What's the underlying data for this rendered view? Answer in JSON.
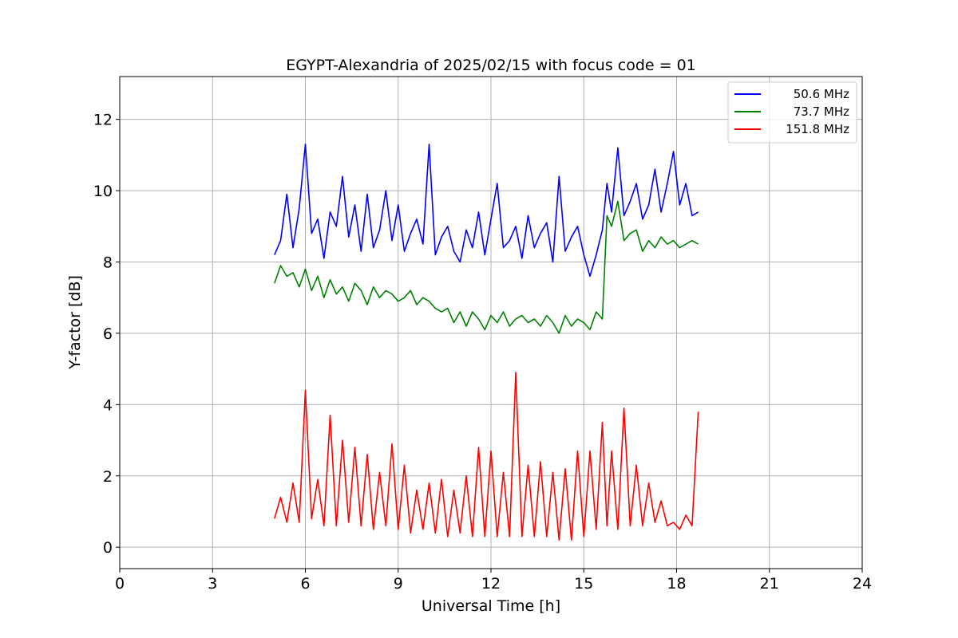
{
  "chart_data": {
    "type": "line",
    "title": "EGYPT-Alexandria of 2025/02/15 with focus code = 01",
    "xlabel": "Universal Time [h]",
    "ylabel": "Y-factor [dB]",
    "xlim": [
      0,
      24
    ],
    "ylim": [
      -0.6,
      13.2
    ],
    "xticks": [
      0,
      3,
      6,
      9,
      12,
      15,
      18,
      21,
      24
    ],
    "xtick_labels": [
      "0",
      "3",
      "6",
      "9",
      "12",
      "15",
      "18",
      "21",
      "24"
    ],
    "yticks": [
      0,
      2,
      4,
      6,
      8,
      10,
      12
    ],
    "ytick_labels": [
      "0",
      "2",
      "4",
      "6",
      "8",
      "10",
      "12"
    ],
    "grid": true,
    "legend_position": "top-right",
    "series": [
      {
        "name": "50.6 MHz",
        "color": "#0000ff",
        "x": [
          5.0,
          5.2,
          5.4,
          5.6,
          5.8,
          6.0,
          6.2,
          6.4,
          6.6,
          6.8,
          7.0,
          7.2,
          7.4,
          7.6,
          7.8,
          8.0,
          8.2,
          8.4,
          8.6,
          8.8,
          9.0,
          9.2,
          9.4,
          9.6,
          9.8,
          10.0,
          10.2,
          10.4,
          10.6,
          10.8,
          11.0,
          11.2,
          11.4,
          11.6,
          11.8,
          12.0,
          12.2,
          12.4,
          12.6,
          12.8,
          13.0,
          13.2,
          13.4,
          13.6,
          13.8,
          14.0,
          14.2,
          14.4,
          14.6,
          14.8,
          15.0,
          15.2,
          15.4,
          15.6,
          15.75,
          15.9,
          16.1,
          16.3,
          16.5,
          16.7,
          16.9,
          17.1,
          17.3,
          17.5,
          17.7,
          17.9,
          18.1,
          18.3,
          18.5,
          18.7
        ],
        "y": [
          8.2,
          8.6,
          9.9,
          8.4,
          9.5,
          11.3,
          8.8,
          9.2,
          8.1,
          9.4,
          9.0,
          10.4,
          8.7,
          9.6,
          8.3,
          9.9,
          8.4,
          8.9,
          10.0,
          8.6,
          9.6,
          8.3,
          8.8,
          9.2,
          8.5,
          11.3,
          8.2,
          8.7,
          9.0,
          8.3,
          8.0,
          8.9,
          8.4,
          9.4,
          8.2,
          9.2,
          10.2,
          8.4,
          8.6,
          9.0,
          8.1,
          9.3,
          8.4,
          8.8,
          9.1,
          8.0,
          10.4,
          8.3,
          8.7,
          9.0,
          8.2,
          7.6,
          8.2,
          8.9,
          10.2,
          9.4,
          11.2,
          9.3,
          9.7,
          10.2,
          9.2,
          9.6,
          10.6,
          9.4,
          10.2,
          11.1,
          9.6,
          10.2,
          9.3,
          9.4
        ]
      },
      {
        "name": "73.7 MHz",
        "color": "#008000",
        "x": [
          5.0,
          5.2,
          5.4,
          5.6,
          5.8,
          6.0,
          6.2,
          6.4,
          6.6,
          6.8,
          7.0,
          7.2,
          7.4,
          7.6,
          7.8,
          8.0,
          8.2,
          8.4,
          8.6,
          8.8,
          9.0,
          9.2,
          9.4,
          9.6,
          9.8,
          10.0,
          10.2,
          10.4,
          10.6,
          10.8,
          11.0,
          11.2,
          11.4,
          11.6,
          11.8,
          12.0,
          12.2,
          12.4,
          12.6,
          12.8,
          13.0,
          13.2,
          13.4,
          13.6,
          13.8,
          14.0,
          14.2,
          14.4,
          14.6,
          14.8,
          15.0,
          15.2,
          15.4,
          15.6,
          15.75,
          15.9,
          16.1,
          16.3,
          16.5,
          16.7,
          16.9,
          17.1,
          17.3,
          17.5,
          17.7,
          17.9,
          18.1,
          18.3,
          18.5,
          18.7
        ],
        "y": [
          7.4,
          7.9,
          7.6,
          7.7,
          7.3,
          7.8,
          7.2,
          7.6,
          7.0,
          7.5,
          7.1,
          7.3,
          6.9,
          7.4,
          7.2,
          6.8,
          7.3,
          7.0,
          7.2,
          7.1,
          6.9,
          7.0,
          7.2,
          6.8,
          7.0,
          6.9,
          6.7,
          6.6,
          6.7,
          6.3,
          6.6,
          6.2,
          6.6,
          6.4,
          6.1,
          6.5,
          6.3,
          6.6,
          6.2,
          6.4,
          6.5,
          6.3,
          6.4,
          6.2,
          6.5,
          6.3,
          6.0,
          6.5,
          6.2,
          6.4,
          6.3,
          6.1,
          6.6,
          6.4,
          9.3,
          9.0,
          9.7,
          8.6,
          8.8,
          8.9,
          8.3,
          8.6,
          8.4,
          8.7,
          8.5,
          8.6,
          8.4,
          8.5,
          8.6,
          8.5
        ]
      },
      {
        "name": "151.8 MHz",
        "color": "#ff0000",
        "x": [
          5.0,
          5.2,
          5.4,
          5.6,
          5.8,
          6.0,
          6.2,
          6.4,
          6.6,
          6.8,
          7.0,
          7.2,
          7.4,
          7.6,
          7.8,
          8.0,
          8.2,
          8.4,
          8.6,
          8.8,
          9.0,
          9.2,
          9.4,
          9.6,
          9.8,
          10.0,
          10.2,
          10.4,
          10.6,
          10.8,
          11.0,
          11.2,
          11.4,
          11.6,
          11.8,
          12.0,
          12.2,
          12.4,
          12.6,
          12.8,
          13.0,
          13.2,
          13.4,
          13.6,
          13.8,
          14.0,
          14.2,
          14.4,
          14.6,
          14.8,
          15.0,
          15.2,
          15.4,
          15.6,
          15.75,
          15.9,
          16.1,
          16.3,
          16.5,
          16.7,
          16.9,
          17.1,
          17.3,
          17.5,
          17.7,
          17.9,
          18.1,
          18.3,
          18.5,
          18.7
        ],
        "y": [
          0.8,
          1.4,
          0.7,
          1.8,
          0.7,
          4.4,
          0.8,
          1.9,
          0.6,
          3.7,
          0.6,
          3.0,
          0.7,
          2.8,
          0.6,
          2.6,
          0.5,
          2.1,
          0.6,
          2.9,
          0.5,
          2.3,
          0.4,
          1.6,
          0.5,
          1.8,
          0.4,
          1.9,
          0.3,
          1.6,
          0.4,
          2.0,
          0.3,
          2.8,
          0.3,
          2.7,
          0.3,
          2.1,
          0.3,
          4.9,
          0.3,
          2.3,
          0.3,
          2.4,
          0.3,
          2.1,
          0.2,
          2.2,
          0.2,
          2.7,
          0.3,
          2.7,
          0.5,
          3.5,
          0.6,
          2.7,
          0.5,
          3.9,
          0.6,
          2.3,
          0.6,
          1.8,
          0.7,
          1.3,
          0.6,
          0.7,
          0.5,
          0.9,
          0.6,
          3.8
        ]
      }
    ]
  }
}
